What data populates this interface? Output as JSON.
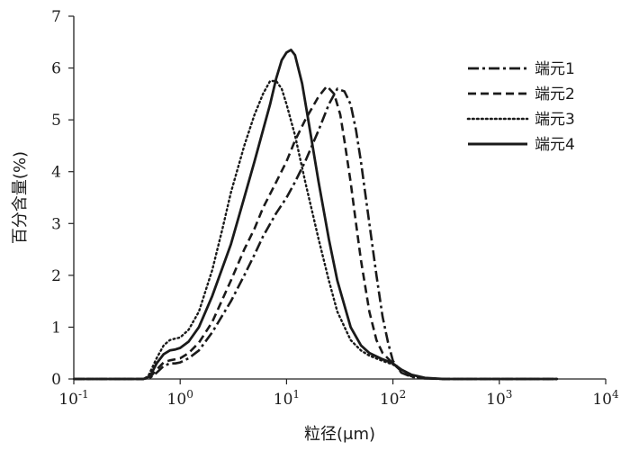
{
  "chart_data": {
    "type": "line",
    "title": "",
    "xlabel": "粒径(μm)",
    "ylabel": "百分含量(%)",
    "xscale": "log",
    "xlim": [
      0.1,
      10000
    ],
    "ylim": [
      0,
      7
    ],
    "grid": false,
    "legend_position": "top-right",
    "x_ticks": [
      {
        "value": 0.1,
        "base": "10",
        "exp": "-1"
      },
      {
        "value": 1,
        "base": "10",
        "exp": "0"
      },
      {
        "value": 10,
        "base": "10",
        "exp": "1"
      },
      {
        "value": 100,
        "base": "10",
        "exp": "2"
      },
      {
        "value": 1000,
        "base": "10",
        "exp": "3"
      },
      {
        "value": 10000,
        "base": "10",
        "exp": "4"
      }
    ],
    "y_ticks": [
      "0",
      "1",
      "2",
      "3",
      "4",
      "5",
      "6",
      "7"
    ],
    "series": [
      {
        "name": "端元1",
        "dash": "dashdot",
        "color": "#1a1a1a",
        "points": [
          [
            0.1,
            0
          ],
          [
            0.45,
            0
          ],
          [
            0.52,
            0.02
          ],
          [
            0.6,
            0.12
          ],
          [
            0.7,
            0.25
          ],
          [
            0.8,
            0.3
          ],
          [
            0.9,
            0.3
          ],
          [
            1.0,
            0.32
          ],
          [
            1.2,
            0.4
          ],
          [
            1.5,
            0.55
          ],
          [
            2,
            0.9
          ],
          [
            3,
            1.5
          ],
          [
            4,
            2.0
          ],
          [
            5,
            2.4
          ],
          [
            6,
            2.75
          ],
          [
            8,
            3.2
          ],
          [
            10,
            3.5
          ],
          [
            12,
            3.8
          ],
          [
            15,
            4.2
          ],
          [
            20,
            4.8
          ],
          [
            25,
            5.3
          ],
          [
            30,
            5.6
          ],
          [
            35,
            5.55
          ],
          [
            40,
            5.3
          ],
          [
            45,
            4.8
          ],
          [
            50,
            4.2
          ],
          [
            60,
            3.0
          ],
          [
            70,
            2.0
          ],
          [
            80,
            1.2
          ],
          [
            90,
            0.7
          ],
          [
            100,
            0.35
          ],
          [
            120,
            0.12
          ],
          [
            150,
            0.04
          ],
          [
            200,
            0.01
          ],
          [
            300,
            0
          ],
          [
            3500,
            0
          ]
        ]
      },
      {
        "name": "端元2",
        "dash": "dashed",
        "color": "#1a1a1a",
        "points": [
          [
            0.1,
            0
          ],
          [
            0.45,
            0
          ],
          [
            0.52,
            0.03
          ],
          [
            0.6,
            0.18
          ],
          [
            0.7,
            0.32
          ],
          [
            0.8,
            0.36
          ],
          [
            0.9,
            0.38
          ],
          [
            1.0,
            0.4
          ],
          [
            1.2,
            0.5
          ],
          [
            1.5,
            0.7
          ],
          [
            2,
            1.1
          ],
          [
            3,
            1.9
          ],
          [
            4,
            2.5
          ],
          [
            5,
            2.9
          ],
          [
            6,
            3.3
          ],
          [
            8,
            3.8
          ],
          [
            10,
            4.2
          ],
          [
            12,
            4.6
          ],
          [
            15,
            5.0
          ],
          [
            20,
            5.45
          ],
          [
            24,
            5.65
          ],
          [
            28,
            5.5
          ],
          [
            32,
            5.1
          ],
          [
            35,
            4.6
          ],
          [
            40,
            3.8
          ],
          [
            45,
            3.0
          ],
          [
            50,
            2.3
          ],
          [
            60,
            1.3
          ],
          [
            70,
            0.75
          ],
          [
            80,
            0.5
          ],
          [
            100,
            0.3
          ],
          [
            120,
            0.15
          ],
          [
            150,
            0.05
          ],
          [
            200,
            0.01
          ],
          [
            300,
            0
          ],
          [
            3500,
            0
          ]
        ]
      },
      {
        "name": "端元3",
        "dash": "dotted",
        "color": "#1a1a1a",
        "points": [
          [
            0.1,
            0
          ],
          [
            0.45,
            0
          ],
          [
            0.5,
            0.05
          ],
          [
            0.6,
            0.4
          ],
          [
            0.7,
            0.65
          ],
          [
            0.8,
            0.75
          ],
          [
            0.9,
            0.78
          ],
          [
            1.0,
            0.8
          ],
          [
            1.2,
            0.95
          ],
          [
            1.5,
            1.3
          ],
          [
            2,
            2.1
          ],
          [
            2.5,
            2.9
          ],
          [
            3,
            3.6
          ],
          [
            4,
            4.5
          ],
          [
            5,
            5.1
          ],
          [
            6,
            5.5
          ],
          [
            7,
            5.75
          ],
          [
            8,
            5.75
          ],
          [
            9,
            5.6
          ],
          [
            10,
            5.3
          ],
          [
            12,
            4.7
          ],
          [
            15,
            3.8
          ],
          [
            20,
            2.7
          ],
          [
            25,
            1.9
          ],
          [
            30,
            1.3
          ],
          [
            40,
            0.75
          ],
          [
            50,
            0.55
          ],
          [
            60,
            0.45
          ],
          [
            80,
            0.35
          ],
          [
            100,
            0.28
          ],
          [
            120,
            0.18
          ],
          [
            150,
            0.08
          ],
          [
            200,
            0.02
          ],
          [
            300,
            0
          ],
          [
            3500,
            0
          ]
        ]
      },
      {
        "name": "端元4",
        "dash": "solid",
        "color": "#1a1a1a",
        "points": [
          [
            0.1,
            0
          ],
          [
            0.45,
            0
          ],
          [
            0.52,
            0.05
          ],
          [
            0.6,
            0.3
          ],
          [
            0.7,
            0.48
          ],
          [
            0.8,
            0.55
          ],
          [
            0.9,
            0.57
          ],
          [
            1.0,
            0.6
          ],
          [
            1.2,
            0.72
          ],
          [
            1.5,
            1.0
          ],
          [
            2,
            1.6
          ],
          [
            3,
            2.6
          ],
          [
            4,
            3.5
          ],
          [
            5,
            4.2
          ],
          [
            6,
            4.8
          ],
          [
            7,
            5.3
          ],
          [
            8,
            5.8
          ],
          [
            9,
            6.15
          ],
          [
            10,
            6.3
          ],
          [
            11,
            6.35
          ],
          [
            12,
            6.25
          ],
          [
            14,
            5.7
          ],
          [
            16,
            5.0
          ],
          [
            20,
            3.8
          ],
          [
            25,
            2.7
          ],
          [
            30,
            1.9
          ],
          [
            40,
            1.0
          ],
          [
            50,
            0.65
          ],
          [
            60,
            0.5
          ],
          [
            80,
            0.38
          ],
          [
            100,
            0.3
          ],
          [
            120,
            0.18
          ],
          [
            150,
            0.08
          ],
          [
            200,
            0.02
          ],
          [
            300,
            0
          ],
          [
            3500,
            0
          ]
        ]
      }
    ]
  }
}
